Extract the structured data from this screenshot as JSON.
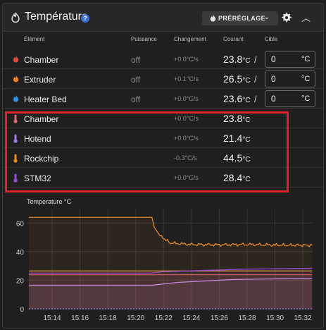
{
  "header": {
    "title": "Température",
    "help_glyph": "?",
    "preset_label": "PRÉRÉGLAGE"
  },
  "columns": {
    "element": "Élément",
    "power": "Puissance",
    "change": "Changement",
    "current": "Courant",
    "target": "Cible"
  },
  "heaters": [
    {
      "name": "Chamber",
      "power": "off",
      "rate": "+0.0°C/s",
      "current": "23.8",
      "unit": "°C",
      "target": "0",
      "target_unit": "°C",
      "icon": "flame-icon",
      "color": "#e0483a"
    },
    {
      "name": "Extruder",
      "power": "off",
      "rate": "+0.1°C/s",
      "current": "26.5",
      "unit": "°C",
      "target": "0",
      "target_unit": "°C",
      "icon": "flame-icon",
      "color": "#f07d1f"
    },
    {
      "name": "Heater Bed",
      "power": "off",
      "rate": "+0.0°C/s",
      "current": "23.6",
      "unit": "°C",
      "target": "0",
      "target_unit": "°C",
      "icon": "flame-icon",
      "color": "#2f8fe0"
    }
  ],
  "sensors": [
    {
      "name": "Chamber",
      "rate": "+0.0°C/s",
      "current": "23.8",
      "unit": "°C",
      "icon": "thermometer-icon",
      "color": "#e26a6a"
    },
    {
      "name": "Hotend",
      "rate": "+0.0°C/s",
      "current": "21.4",
      "unit": "°C",
      "icon": "thermometer-icon",
      "color": "#a37be8"
    },
    {
      "name": "Rockchip",
      "rate": "-0.3°C/s",
      "current": "44.5",
      "unit": "°C",
      "icon": "thermometer-icon",
      "color": "#f08a1c"
    },
    {
      "name": "STM32",
      "rate": "+0.0°C/s",
      "current": "28.4",
      "unit": "°C",
      "icon": "thermometer-icon",
      "color": "#9b4dd8"
    }
  ],
  "chart_label": "Temperature °C",
  "chart_data": {
    "type": "line",
    "ylabel": "Temperature °C",
    "ylim": [
      0,
      70
    ],
    "yticks": [
      0,
      20,
      40,
      60
    ],
    "xlim": [
      15.203,
      15.545
    ],
    "xticks": [
      "15:14",
      "15:16",
      "15:18",
      "15:20",
      "15:22",
      "15:24",
      "15:26",
      "15:28",
      "15:30",
      "15:32"
    ],
    "grid": true,
    "series": [
      {
        "color": "#f0902a",
        "points": [
          [
            "15:12:20",
            64
          ],
          [
            "15:21:10",
            64
          ],
          [
            "15:21:20",
            57
          ],
          [
            "15:21:45",
            51
          ],
          [
            "15:22:30",
            46
          ],
          [
            "15:24:00",
            45
          ],
          [
            "15:26:00",
            44.8
          ],
          [
            "15:28:00",
            45
          ],
          [
            "15:30:00",
            44.6
          ],
          [
            "15:32:40",
            44.5
          ]
        ]
      },
      {
        "color": "#f0a040",
        "points": [
          [
            "15:12:20",
            26.5
          ],
          [
            "15:32:40",
            26.5
          ]
        ]
      },
      {
        "color": "#e06060",
        "points": [
          [
            "15:12:20",
            23.8
          ],
          [
            "15:32:40",
            23.8
          ]
        ]
      },
      {
        "color": "#9b4dd8",
        "points": [
          [
            "15:12:20",
            25
          ],
          [
            "15:21:10",
            25
          ],
          [
            "15:22:00",
            26
          ],
          [
            "15:28:00",
            27.8
          ],
          [
            "15:32:40",
            28.4
          ]
        ]
      },
      {
        "color": "#c48be0",
        "points": [
          [
            "15:12:20",
            16.5
          ],
          [
            "15:21:10",
            16.5
          ],
          [
            "15:23:00",
            18.5
          ],
          [
            "15:27:00",
            20.5
          ],
          [
            "15:32:40",
            21.4
          ]
        ]
      },
      {
        "color": "#b0a0ff",
        "points": [
          [
            "15:12:20",
            0
          ],
          [
            "15:32:40",
            0
          ]
        ]
      }
    ]
  },
  "colors": {
    "accent_red": "#e0202a",
    "help_blue": "#3b6fd8"
  }
}
